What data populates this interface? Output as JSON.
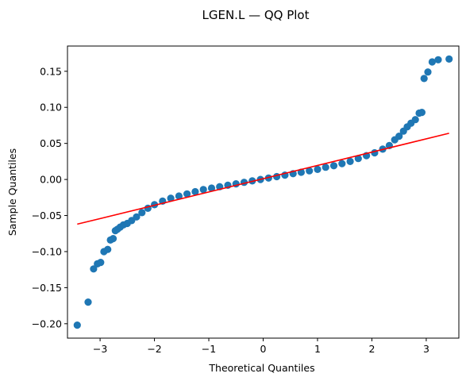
{
  "chart_data": {
    "type": "scatter",
    "title": "LGEN.L — QQ Plot",
    "xlabel": "Theoretical Quantiles",
    "ylabel": "Sample Quantiles",
    "xlim": [
      -3.6,
      3.6
    ],
    "ylim": [
      -0.22,
      0.185
    ],
    "x_ticks": [
      -3,
      -2,
      -1,
      0,
      1,
      2,
      3
    ],
    "x_tick_labels": [
      "−3",
      "−2",
      "−1",
      "0",
      "1",
      "2",
      "3"
    ],
    "y_ticks": [
      -0.2,
      -0.15,
      -0.1,
      -0.05,
      0.0,
      0.05,
      0.1,
      0.15
    ],
    "y_tick_labels": [
      "−0.20",
      "−0.15",
      "−0.10",
      "−0.05",
      "0.00",
      "0.05",
      "0.10",
      "0.15"
    ],
    "grid": false,
    "legend": "none",
    "marker_color": "#1f77b4",
    "line_color": "#ff0000",
    "series": [
      {
        "type": "scatter",
        "points": [
          [
            -3.42,
            -0.202
          ],
          [
            -3.22,
            -0.17
          ],
          [
            -3.12,
            -0.124
          ],
          [
            -3.05,
            -0.117
          ],
          [
            -2.99,
            -0.115
          ],
          [
            -2.93,
            -0.1
          ],
          [
            -2.86,
            -0.097
          ],
          [
            -2.81,
            -0.084
          ],
          [
            -2.76,
            -0.082
          ],
          [
            -2.72,
            -0.071
          ],
          [
            -2.68,
            -0.069
          ],
          [
            -2.63,
            -0.066
          ],
          [
            -2.57,
            -0.063
          ],
          [
            -2.5,
            -0.061
          ],
          [
            -2.42,
            -0.057
          ],
          [
            -2.33,
            -0.052
          ],
          [
            -2.23,
            -0.046
          ],
          [
            -2.12,
            -0.04
          ],
          [
            -2.0,
            -0.035
          ],
          [
            -1.85,
            -0.03
          ],
          [
            -1.7,
            -0.026
          ],
          [
            -1.55,
            -0.023
          ],
          [
            -1.4,
            -0.02
          ],
          [
            -1.25,
            -0.017
          ],
          [
            -1.1,
            -0.014
          ],
          [
            -0.95,
            -0.012
          ],
          [
            -0.8,
            -0.01
          ],
          [
            -0.65,
            -0.008
          ],
          [
            -0.5,
            -0.006
          ],
          [
            -0.35,
            -0.004
          ],
          [
            -0.2,
            -0.002
          ],
          [
            -0.05,
            0.0
          ],
          [
            0.1,
            0.002
          ],
          [
            0.25,
            0.004
          ],
          [
            0.4,
            0.006
          ],
          [
            0.55,
            0.008
          ],
          [
            0.7,
            0.01
          ],
          [
            0.85,
            0.012
          ],
          [
            1.0,
            0.014
          ],
          [
            1.15,
            0.017
          ],
          [
            1.3,
            0.019
          ],
          [
            1.45,
            0.022
          ],
          [
            1.6,
            0.025
          ],
          [
            1.75,
            0.029
          ],
          [
            1.9,
            0.033
          ],
          [
            2.05,
            0.037
          ],
          [
            2.2,
            0.042
          ],
          [
            2.32,
            0.047
          ],
          [
            2.42,
            0.055
          ],
          [
            2.5,
            0.06
          ],
          [
            2.58,
            0.067
          ],
          [
            2.65,
            0.073
          ],
          [
            2.72,
            0.078
          ],
          [
            2.8,
            0.083
          ],
          [
            2.87,
            0.092
          ],
          [
            2.92,
            0.093
          ],
          [
            2.96,
            0.14
          ],
          [
            3.03,
            0.149
          ],
          [
            3.11,
            0.163
          ],
          [
            3.22,
            0.166
          ],
          [
            3.42,
            0.167
          ]
        ]
      },
      {
        "type": "line",
        "points": [
          [
            -3.42,
            -0.062
          ],
          [
            3.42,
            0.064
          ]
        ]
      }
    ]
  }
}
